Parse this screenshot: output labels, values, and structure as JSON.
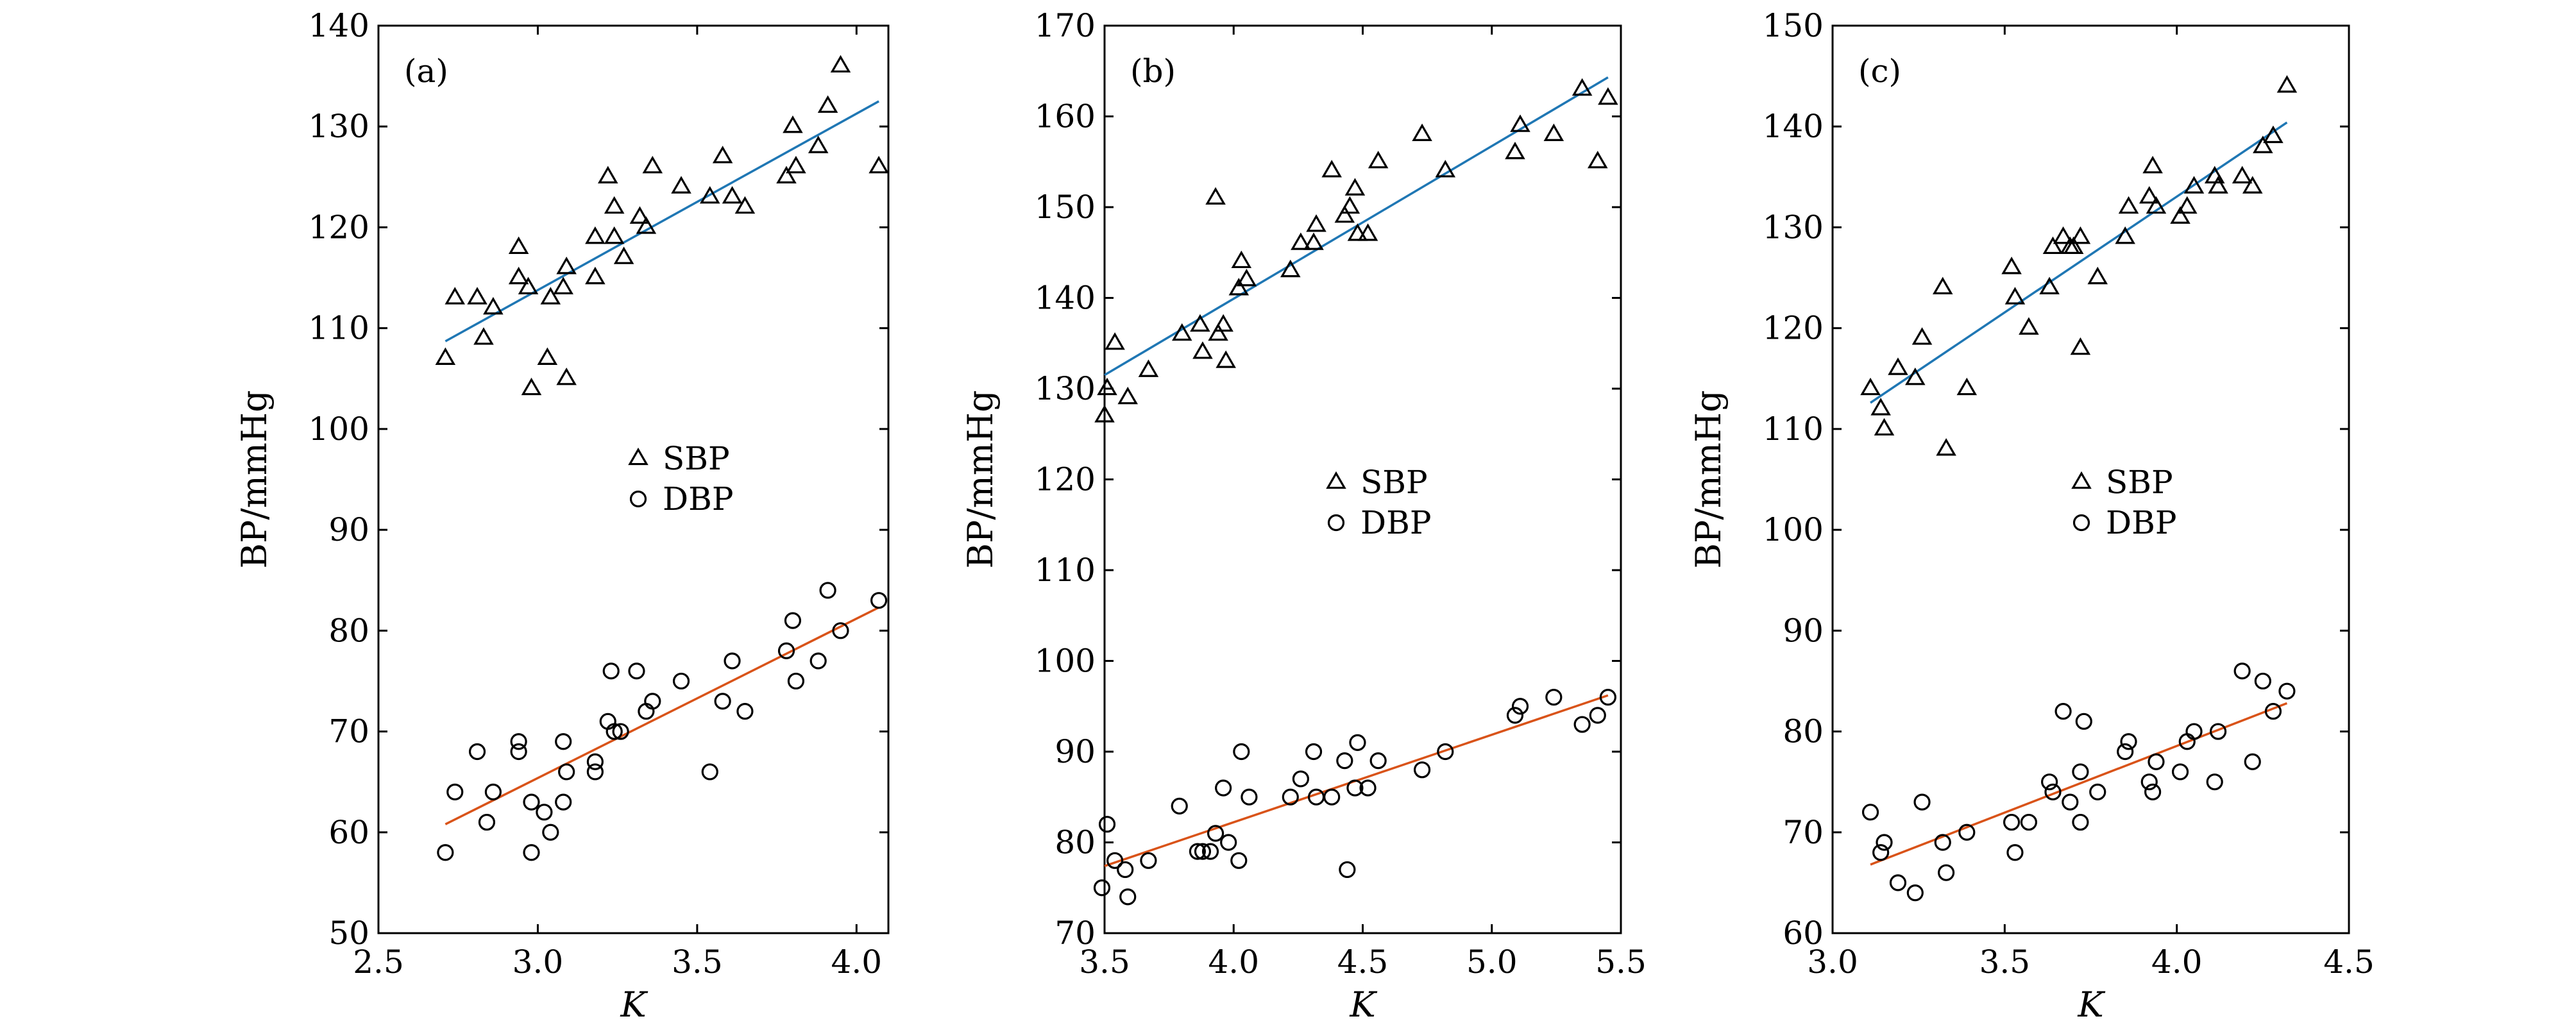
{
  "chart_data": [
    {
      "type": "scatter",
      "panel_label": "(a)",
      "xlabel": "K",
      "ylabel": "BP/mmHg",
      "xlim": [
        2.5,
        4.1
      ],
      "ylim": [
        50,
        140
      ],
      "xticks": [
        2.5,
        3.0,
        3.5,
        4.0
      ],
      "xtick_labels": [
        "2.5",
        "3.0",
        "3.5",
        "4.0"
      ],
      "yticks": [
        50,
        60,
        70,
        80,
        90,
        100,
        110,
        120,
        130,
        140
      ],
      "ytick_labels": [
        "50",
        "60",
        "70",
        "80",
        "90",
        "100",
        "110",
        "120",
        "130",
        "140"
      ],
      "legend": [
        "SBP",
        "DBP"
      ],
      "legend_position": "center-right",
      "series": [
        {
          "name": "SBP",
          "marker": "triangle",
          "points": [
            [
              2.71,
              107
            ],
            [
              2.74,
              113
            ],
            [
              2.81,
              113
            ],
            [
              2.83,
              109
            ],
            [
              2.86,
              112
            ],
            [
              2.94,
              118
            ],
            [
              2.94,
              115
            ],
            [
              2.97,
              114
            ],
            [
              2.98,
              104
            ],
            [
              3.03,
              107
            ],
            [
              3.04,
              113
            ],
            [
              3.08,
              114
            ],
            [
              3.09,
              116
            ],
            [
              3.09,
              105
            ],
            [
              3.18,
              115
            ],
            [
              3.18,
              119
            ],
            [
              3.22,
              125
            ],
            [
              3.24,
              122
            ],
            [
              3.24,
              119
            ],
            [
              3.27,
              117
            ],
            [
              3.32,
              121
            ],
            [
              3.34,
              120
            ],
            [
              3.36,
              126
            ],
            [
              3.45,
              124
            ],
            [
              3.54,
              123
            ],
            [
              3.58,
              127
            ],
            [
              3.61,
              123
            ],
            [
              3.65,
              122
            ],
            [
              3.78,
              125
            ],
            [
              3.8,
              130
            ],
            [
              3.81,
              126
            ],
            [
              3.88,
              128
            ],
            [
              3.91,
              132
            ],
            [
              3.95,
              136
            ],
            [
              4.07,
              126
            ]
          ]
        },
        {
          "name": "DBP",
          "marker": "circle",
          "points": [
            [
              2.71,
              58
            ],
            [
              2.74,
              64
            ],
            [
              2.81,
              68
            ],
            [
              2.84,
              61
            ],
            [
              2.86,
              64
            ],
            [
              2.94,
              68
            ],
            [
              2.94,
              69
            ],
            [
              2.98,
              58
            ],
            [
              2.98,
              63
            ],
            [
              3.02,
              62
            ],
            [
              3.04,
              60
            ],
            [
              3.08,
              63
            ],
            [
              3.08,
              69
            ],
            [
              3.09,
              66
            ],
            [
              3.18,
              66
            ],
            [
              3.18,
              67
            ],
            [
              3.22,
              71
            ],
            [
              3.23,
              76
            ],
            [
              3.24,
              70
            ],
            [
              3.26,
              70
            ],
            [
              3.31,
              76
            ],
            [
              3.34,
              72
            ],
            [
              3.36,
              73
            ],
            [
              3.45,
              75
            ],
            [
              3.54,
              66
            ],
            [
              3.58,
              73
            ],
            [
              3.61,
              77
            ],
            [
              3.65,
              72
            ],
            [
              3.78,
              78
            ],
            [
              3.8,
              81
            ],
            [
              3.81,
              75
            ],
            [
              3.88,
              77
            ],
            [
              3.91,
              84
            ],
            [
              3.95,
              80
            ],
            [
              4.07,
              83
            ]
          ]
        }
      ],
      "fit_lines": [
        {
          "name": "SBP fit",
          "color": "#1f77b4",
          "x": [
            2.71,
            4.07
          ],
          "y": [
            108.7,
            132.5
          ]
        },
        {
          "name": "DBP fit",
          "color": "#d95319",
          "x": [
            2.71,
            4.07
          ],
          "y": [
            60.8,
            82.3
          ]
        }
      ]
    },
    {
      "type": "scatter",
      "panel_label": "(b)",
      "xlabel": "K",
      "ylabel": "BP/mmHg",
      "xlim": [
        3.5,
        5.5
      ],
      "ylim": [
        70,
        170
      ],
      "xticks": [
        3.5,
        4.0,
        4.5,
        5.0,
        5.5
      ],
      "xtick_labels": [
        "3.5",
        "4.0",
        "4.5",
        "5.0",
        "5.5"
      ],
      "yticks": [
        70,
        80,
        90,
        100,
        110,
        120,
        130,
        140,
        150,
        160,
        170
      ],
      "ytick_labels": [
        "70",
        "80",
        "90",
        "100",
        "110",
        "120",
        "130",
        "140",
        "150",
        "160",
        "170"
      ],
      "legend": [
        "SBP",
        "DBP"
      ],
      "legend_position": "center-right",
      "series": [
        {
          "name": "SBP",
          "marker": "triangle",
          "points": [
            [
              3.5,
              127
            ],
            [
              3.51,
              130
            ],
            [
              3.54,
              135
            ],
            [
              3.59,
              129
            ],
            [
              3.67,
              132
            ],
            [
              3.8,
              136
            ],
            [
              3.87,
              137
            ],
            [
              3.88,
              134
            ],
            [
              3.93,
              151
            ],
            [
              3.94,
              136
            ],
            [
              3.96,
              137
            ],
            [
              3.97,
              133
            ],
            [
              4.02,
              141
            ],
            [
              4.03,
              144
            ],
            [
              4.05,
              142
            ],
            [
              4.22,
              143
            ],
            [
              4.26,
              146
            ],
            [
              4.31,
              146
            ],
            [
              4.32,
              148
            ],
            [
              4.38,
              154
            ],
            [
              4.43,
              149
            ],
            [
              4.45,
              150
            ],
            [
              4.47,
              152
            ],
            [
              4.48,
              147
            ],
            [
              4.52,
              147
            ],
            [
              4.56,
              155
            ],
            [
              4.73,
              158
            ],
            [
              4.82,
              154
            ],
            [
              5.09,
              156
            ],
            [
              5.11,
              159
            ],
            [
              5.24,
              158
            ],
            [
              5.35,
              163
            ],
            [
              5.41,
              155
            ],
            [
              5.45,
              162
            ]
          ]
        },
        {
          "name": "DBP",
          "marker": "circle",
          "points": [
            [
              3.49,
              75
            ],
            [
              3.51,
              82
            ],
            [
              3.54,
              78
            ],
            [
              3.58,
              77
            ],
            [
              3.59,
              74
            ],
            [
              3.67,
              78
            ],
            [
              3.79,
              84
            ],
            [
              3.86,
              79
            ],
            [
              3.88,
              79
            ],
            [
              3.91,
              79
            ],
            [
              3.93,
              81
            ],
            [
              3.96,
              86
            ],
            [
              3.98,
              80
            ],
            [
              4.02,
              78
            ],
            [
              4.03,
              90
            ],
            [
              4.06,
              85
            ],
            [
              4.22,
              85
            ],
            [
              4.26,
              87
            ],
            [
              4.31,
              90
            ],
            [
              4.32,
              85
            ],
            [
              4.38,
              85
            ],
            [
              4.43,
              89
            ],
            [
              4.44,
              77
            ],
            [
              4.47,
              86
            ],
            [
              4.48,
              91
            ],
            [
              4.52,
              86
            ],
            [
              4.56,
              89
            ],
            [
              4.73,
              88
            ],
            [
              4.82,
              90
            ],
            [
              5.09,
              94
            ],
            [
              5.11,
              95
            ],
            [
              5.24,
              96
            ],
            [
              5.35,
              93
            ],
            [
              5.41,
              94
            ],
            [
              5.45,
              96
            ]
          ]
        }
      ],
      "fit_lines": [
        {
          "name": "SBP fit",
          "color": "#1f77b4",
          "x": [
            3.5,
            5.45
          ],
          "y": [
            131.5,
            164.3
          ]
        },
        {
          "name": "DBP fit",
          "color": "#d95319",
          "x": [
            3.5,
            5.45
          ],
          "y": [
            77.4,
            96.2
          ]
        }
      ]
    },
    {
      "type": "scatter",
      "panel_label": "(c)",
      "xlabel": "K",
      "ylabel": "BP/mmHg",
      "xlim": [
        3.0,
        4.5
      ],
      "ylim": [
        60,
        150
      ],
      "xticks": [
        3.0,
        3.5,
        4.0,
        4.5
      ],
      "xtick_labels": [
        "3.0",
        "3.5",
        "4.0",
        "4.5"
      ],
      "yticks": [
        60,
        70,
        80,
        90,
        100,
        110,
        120,
        130,
        140,
        150
      ],
      "ytick_labels": [
        "60",
        "70",
        "80",
        "90",
        "100",
        "110",
        "120",
        "130",
        "140",
        "150"
      ],
      "legend": [
        "SBP",
        "DBP"
      ],
      "legend_position": "center-right",
      "series": [
        {
          "name": "SBP",
          "marker": "triangle",
          "points": [
            [
              3.11,
              114
            ],
            [
              3.14,
              112
            ],
            [
              3.15,
              110
            ],
            [
              3.19,
              116
            ],
            [
              3.24,
              115
            ],
            [
              3.26,
              119
            ],
            [
              3.32,
              124
            ],
            [
              3.33,
              108
            ],
            [
              3.39,
              114
            ],
            [
              3.52,
              126
            ],
            [
              3.53,
              123
            ],
            [
              3.57,
              120
            ],
            [
              3.63,
              124
            ],
            [
              3.64,
              128
            ],
            [
              3.67,
              129
            ],
            [
              3.69,
              128
            ],
            [
              3.7,
              128
            ],
            [
              3.72,
              118
            ],
            [
              3.72,
              129
            ],
            [
              3.77,
              125
            ],
            [
              3.85,
              129
            ],
            [
              3.86,
              132
            ],
            [
              3.92,
              133
            ],
            [
              3.93,
              136
            ],
            [
              3.94,
              132
            ],
            [
              4.01,
              131
            ],
            [
              4.03,
              132
            ],
            [
              4.05,
              134
            ],
            [
              4.11,
              135
            ],
            [
              4.12,
              134
            ],
            [
              4.19,
              135
            ],
            [
              4.22,
              134
            ],
            [
              4.25,
              138
            ],
            [
              4.28,
              139
            ],
            [
              4.32,
              144
            ]
          ]
        },
        {
          "name": "DBP",
          "marker": "circle",
          "points": [
            [
              3.11,
              72
            ],
            [
              3.14,
              68
            ],
            [
              3.15,
              69
            ],
            [
              3.19,
              65
            ],
            [
              3.24,
              64
            ],
            [
              3.26,
              73
            ],
            [
              3.32,
              69
            ],
            [
              3.33,
              66
            ],
            [
              3.39,
              70
            ],
            [
              3.52,
              71
            ],
            [
              3.53,
              68
            ],
            [
              3.57,
              71
            ],
            [
              3.63,
              75
            ],
            [
              3.64,
              74
            ],
            [
              3.67,
              82
            ],
            [
              3.69,
              73
            ],
            [
              3.72,
              76
            ],
            [
              3.72,
              71
            ],
            [
              3.73,
              81
            ],
            [
              3.77,
              74
            ],
            [
              3.85,
              78
            ],
            [
              3.86,
              79
            ],
            [
              3.92,
              75
            ],
            [
              3.93,
              74
            ],
            [
              3.94,
              77
            ],
            [
              4.01,
              76
            ],
            [
              4.03,
              79
            ],
            [
              4.05,
              80
            ],
            [
              4.11,
              75
            ],
            [
              4.12,
              80
            ],
            [
              4.19,
              86
            ],
            [
              4.22,
              77
            ],
            [
              4.25,
              85
            ],
            [
              4.28,
              82
            ],
            [
              4.32,
              84
            ]
          ]
        }
      ],
      "fit_lines": [
        {
          "name": "SBP fit",
          "color": "#1f77b4",
          "x": [
            3.11,
            4.32
          ],
          "y": [
            112.6,
            140.4
          ]
        },
        {
          "name": "DBP fit",
          "color": "#d95319",
          "x": [
            3.11,
            4.32
          ],
          "y": [
            66.8,
            82.8
          ]
        }
      ]
    }
  ]
}
